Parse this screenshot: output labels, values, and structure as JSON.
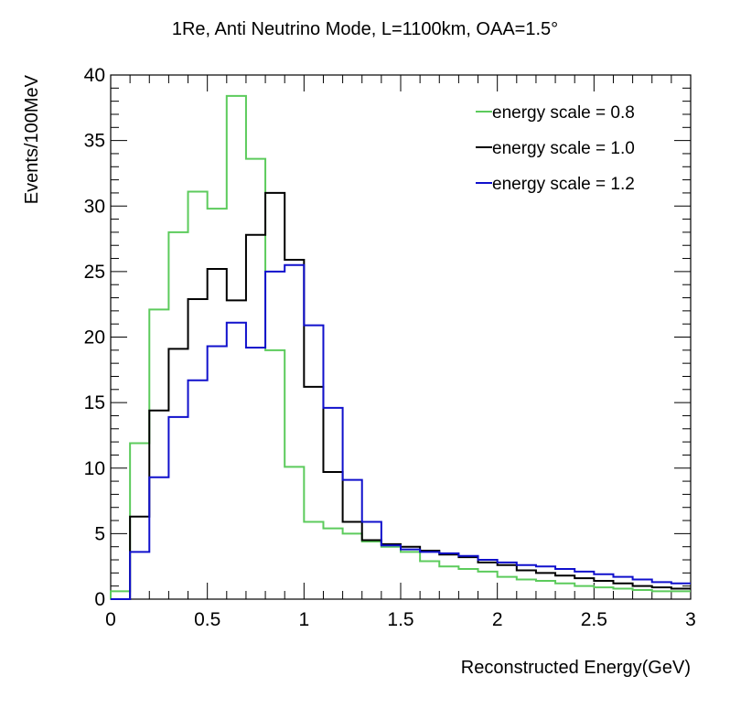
{
  "chart_data": {
    "type": "line",
    "style": "step-histogram",
    "title": "1Re, Anti Neutrino Mode, L=1100km, OAA=1.5°",
    "xlabel": "Reconstructed Energy(GeV)",
    "ylabel": "Events/100MeV",
    "xlim": [
      0,
      3
    ],
    "ylim": [
      0,
      40
    ],
    "bin_width": 0.1,
    "x_bin_edges": [
      0.0,
      0.1,
      0.2,
      0.3,
      0.4,
      0.5,
      0.6,
      0.7,
      0.8,
      0.9,
      1.0,
      1.1,
      1.2,
      1.3,
      1.4,
      1.5,
      1.6,
      1.7,
      1.8,
      1.9,
      2.0,
      2.1,
      2.2,
      2.3,
      2.4,
      2.5,
      2.6,
      2.7,
      2.8,
      2.9,
      3.0
    ],
    "x_ticks": [
      0,
      0.5,
      1,
      1.5,
      2,
      2.5,
      3
    ],
    "x_tick_labels": [
      "0",
      "0.5",
      "1",
      "1.5",
      "2",
      "2.5",
      "3"
    ],
    "y_ticks": [
      0,
      5,
      10,
      15,
      20,
      25,
      30,
      35,
      40
    ],
    "y_tick_labels": [
      "0",
      "5",
      "10",
      "15",
      "20",
      "25",
      "30",
      "35",
      "40"
    ],
    "grid": false,
    "legend_position": "top-right",
    "series": [
      {
        "name": "energy scale = 0.8",
        "color": "#5ccb5c",
        "values": [
          0.6,
          11.9,
          22.1,
          28.0,
          31.1,
          29.8,
          38.4,
          33.6,
          19.0,
          10.1,
          5.9,
          5.4,
          5.0,
          4.4,
          4.0,
          3.6,
          2.9,
          2.5,
          2.3,
          2.1,
          1.7,
          1.5,
          1.4,
          1.2,
          1.0,
          0.9,
          0.8,
          0.7,
          0.6,
          0.6
        ]
      },
      {
        "name": "energy scale = 1.0",
        "color": "#000000",
        "values": [
          0.0,
          6.3,
          14.4,
          19.1,
          22.9,
          25.2,
          22.8,
          27.8,
          31.0,
          25.9,
          16.2,
          9.7,
          5.9,
          4.5,
          4.2,
          4.0,
          3.7,
          3.4,
          3.2,
          2.8,
          2.6,
          2.2,
          2.0,
          1.8,
          1.6,
          1.4,
          1.2,
          1.0,
          0.9,
          0.8
        ]
      },
      {
        "name": "energy scale = 1.2",
        "color": "#1010cc",
        "values": [
          0.0,
          3.6,
          9.3,
          13.9,
          16.7,
          19.3,
          21.1,
          19.2,
          25.0,
          25.5,
          20.9,
          14.6,
          9.1,
          5.9,
          4.1,
          3.8,
          3.6,
          3.5,
          3.3,
          3.0,
          2.8,
          2.6,
          2.5,
          2.3,
          2.1,
          1.9,
          1.7,
          1.5,
          1.3,
          1.2
        ]
      }
    ]
  }
}
